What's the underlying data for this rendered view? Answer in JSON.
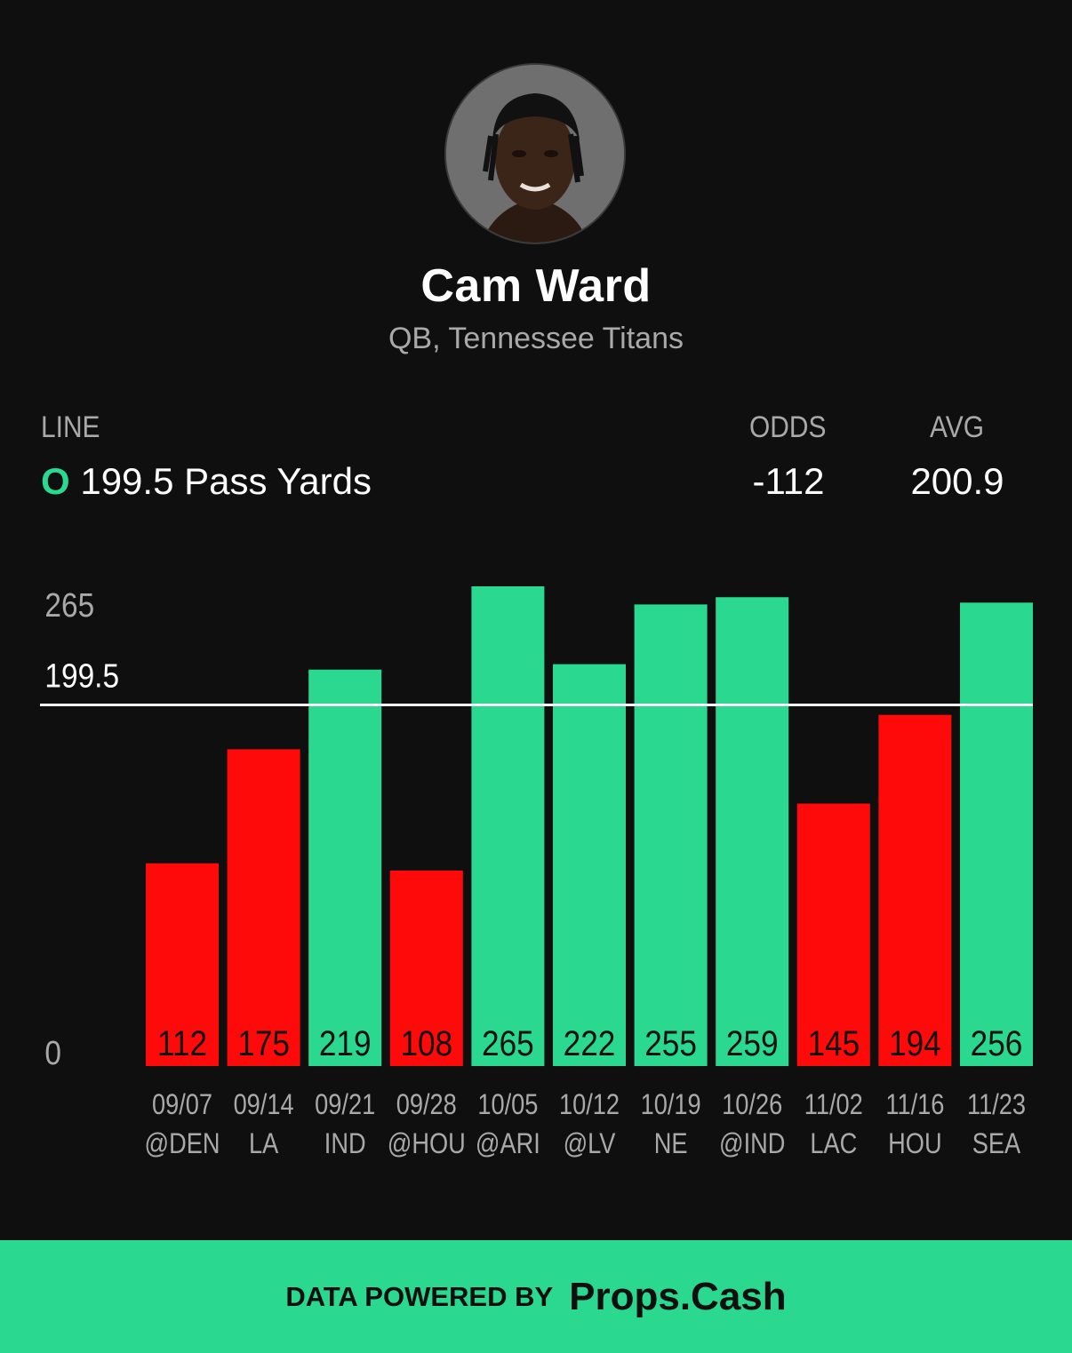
{
  "player": {
    "name": "Cam Ward",
    "subtitle": "QB, Tennessee Titans"
  },
  "stats": {
    "line_label": "LINE",
    "line_side": "O",
    "line_text": "199.5 Pass Yards",
    "odds_label": "ODDS",
    "odds_value": "-112",
    "avg_label": "AVG",
    "avg_value": "200.9"
  },
  "chart_data": {
    "type": "bar",
    "title": "",
    "xlabel": "",
    "ylabel": "",
    "ylim": [
      0,
      265
    ],
    "y_ticks": [
      "0",
      "199.5",
      "265"
    ],
    "threshold": 199.5,
    "grid": false,
    "categories": [
      {
        "date": "09/07",
        "opponent": "@DEN"
      },
      {
        "date": "09/14",
        "opponent": "LA"
      },
      {
        "date": "09/21",
        "opponent": "IND"
      },
      {
        "date": "09/28",
        "opponent": "@HOU"
      },
      {
        "date": "10/05",
        "opponent": "@ARI"
      },
      {
        "date": "10/12",
        "opponent": "@LV"
      },
      {
        "date": "10/19",
        "opponent": "NE"
      },
      {
        "date": "10/26",
        "opponent": "@IND"
      },
      {
        "date": "11/02",
        "opponent": "LAC"
      },
      {
        "date": "11/16",
        "opponent": "HOU"
      },
      {
        "date": "11/23",
        "opponent": "SEA"
      }
    ],
    "values": [
      112,
      175,
      219,
      108,
      265,
      222,
      255,
      259,
      145,
      194,
      256
    ],
    "colors": {
      "over": "#2ad88f",
      "under": "#ff0a0a",
      "line": "#ffffff"
    }
  },
  "footer": {
    "powered_by": "DATA POWERED BY",
    "brand": "Props.Cash"
  }
}
